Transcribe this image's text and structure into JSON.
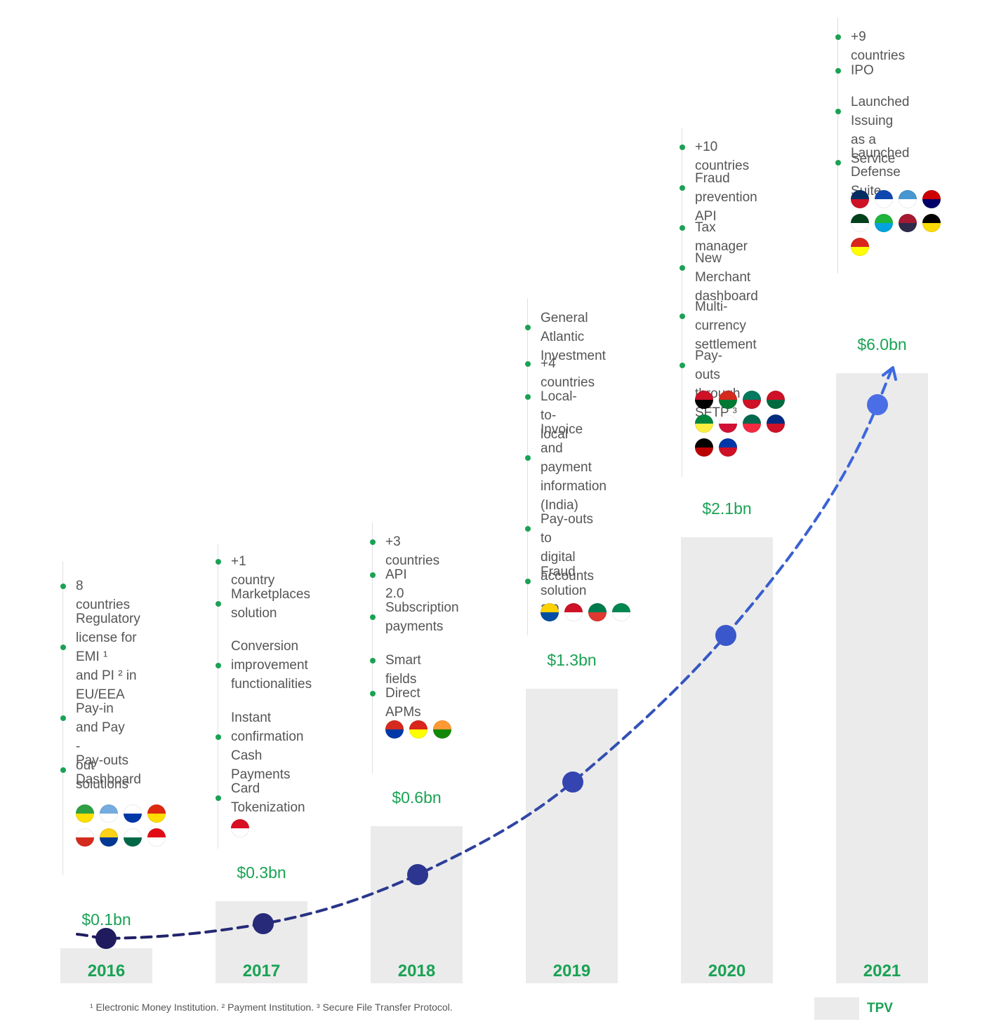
{
  "chart_data": {
    "type": "bar",
    "categories": [
      "2016",
      "2017",
      "2018",
      "2019",
      "2020",
      "2021"
    ],
    "values": [
      0.1,
      0.3,
      0.6,
      1.3,
      2.1,
      6.0
    ],
    "value_labels": [
      "$0.1bn",
      "$0.3bn",
      "$0.6bn",
      "$1.3bn",
      "$2.1bn",
      "$6.0bn"
    ],
    "legend": [
      "TPV"
    ],
    "trend": "dashed growth curve with markers, arrow at end",
    "grid": false,
    "colors": {
      "bar": "#ebebeb",
      "year": "#1aa254",
      "value": "#1aa254",
      "dot": "#1aa254",
      "curve_start": "#1f1b5e",
      "curve_end": "#3d6ae0",
      "text": "#555555"
    }
  },
  "milestones": [
    {
      "year": "2016",
      "items": [
        "8 countries",
        "Regulatory\nlicense for EMI ¹\nand PI ² in\nEU/EEA",
        "Pay-in and Pay -\nout solutions",
        "Pay-outs\nDashboard"
      ],
      "flags": [
        "brazil",
        "argentina",
        "uruguay",
        "china",
        "chile",
        "colombia",
        "mexico",
        "turkey"
      ]
    },
    {
      "year": "2017",
      "items": [
        "+1 country",
        "Marketplaces\nsolution",
        "Conversion\nimprovement\nfunctionalities",
        "Instant\nconfirmation\nCash Payments",
        "Card\nTokenization"
      ],
      "flags": [
        "peru"
      ]
    },
    {
      "year": "2018",
      "items": [
        "+3 countries",
        "API 2.0",
        "Subscription\npayments",
        "Smart fields",
        "Direct APMs"
      ],
      "flags": [
        "paraguay",
        "vietnam",
        "india"
      ]
    },
    {
      "year": "2019",
      "items": [
        "General Atlantic\nInvestment",
        "+4 countries",
        "Local-to-local",
        "Invoice and\npayment\ninformation\n(India)",
        "Pay-outs to\ndigital accounts",
        "Fraud solution\n2.0"
      ],
      "flags": [
        "ecuador",
        "indonesia",
        "south-africa",
        "nigeria"
      ]
    },
    {
      "year": "2020",
      "items": [
        "+10 countries",
        "Fraud prevention\nAPI",
        "Tax manager",
        "New Merchant\ndashboard",
        "Multi-currency\nsettlement",
        "Pay-outs through\nSFTP ³"
      ],
      "flags": [
        "egypt",
        "bolivia",
        "cameroon",
        "ghana",
        "senegal",
        "panama",
        "bangladesh",
        "costa-rica",
        "kenya",
        "philippines"
      ]
    },
    {
      "year": "2021",
      "items": [
        "+9 countries",
        "IPO",
        "Launched Issuing\nas a Service",
        "Launched Defense\nSuite"
      ],
      "flags": [
        "dominican-republic",
        "el-salvador",
        "guatemala",
        "malaysia",
        "pakistan",
        "tanzania",
        "thailand",
        "uganda",
        "vietnam"
      ]
    }
  ],
  "footnote": "¹ Electronic Money Institution. ² Payment Institution. ³ Secure File Transfer Protocol.",
  "legend_label": "TPV"
}
